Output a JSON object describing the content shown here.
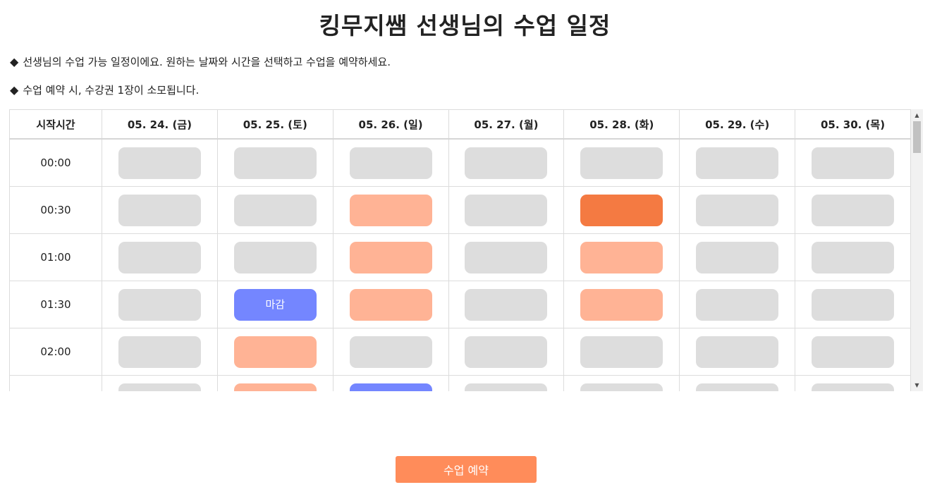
{
  "page": {
    "title": "킹무지쌤 선생님의 수업 일정",
    "notices": [
      "선생님의 수업 가능 일정이에요. 원하는 날짜와 시간을 선택하고 수업을 예약하세요.",
      "수업 예약 시, 수강권 1장이 소모됩니다."
    ],
    "bullet_glyph": "◆"
  },
  "schedule": {
    "time_header": "시작시간",
    "dates": [
      "05. 24. (금)",
      "05. 25. (토)",
      "05. 26. (일)",
      "05. 27. (월)",
      "05. 28. (화)",
      "05. 29. (수)",
      "05. 30. (목)"
    ],
    "rows": [
      {
        "time": "00:00",
        "slots": [
          {
            "state": "empty",
            "label": ""
          },
          {
            "state": "empty",
            "label": ""
          },
          {
            "state": "empty",
            "label": ""
          },
          {
            "state": "empty",
            "label": ""
          },
          {
            "state": "empty",
            "label": ""
          },
          {
            "state": "empty",
            "label": ""
          },
          {
            "state": "empty",
            "label": ""
          }
        ]
      },
      {
        "time": "00:30",
        "slots": [
          {
            "state": "empty",
            "label": ""
          },
          {
            "state": "empty",
            "label": ""
          },
          {
            "state": "available",
            "label": ""
          },
          {
            "state": "empty",
            "label": ""
          },
          {
            "state": "selected",
            "label": ""
          },
          {
            "state": "empty",
            "label": ""
          },
          {
            "state": "empty",
            "label": ""
          }
        ]
      },
      {
        "time": "01:00",
        "slots": [
          {
            "state": "empty",
            "label": ""
          },
          {
            "state": "empty",
            "label": ""
          },
          {
            "state": "available",
            "label": ""
          },
          {
            "state": "empty",
            "label": ""
          },
          {
            "state": "available",
            "label": ""
          },
          {
            "state": "empty",
            "label": ""
          },
          {
            "state": "empty",
            "label": ""
          }
        ]
      },
      {
        "time": "01:30",
        "slots": [
          {
            "state": "empty",
            "label": ""
          },
          {
            "state": "closed",
            "label": "마감"
          },
          {
            "state": "available",
            "label": ""
          },
          {
            "state": "empty",
            "label": ""
          },
          {
            "state": "available",
            "label": ""
          },
          {
            "state": "empty",
            "label": ""
          },
          {
            "state": "empty",
            "label": ""
          }
        ]
      },
      {
        "time": "02:00",
        "slots": [
          {
            "state": "empty",
            "label": ""
          },
          {
            "state": "available",
            "label": ""
          },
          {
            "state": "empty",
            "label": ""
          },
          {
            "state": "empty",
            "label": ""
          },
          {
            "state": "empty",
            "label": ""
          },
          {
            "state": "empty",
            "label": ""
          },
          {
            "state": "empty",
            "label": ""
          }
        ]
      },
      {
        "time": "",
        "slots": [
          {
            "state": "empty",
            "label": ""
          },
          {
            "state": "available",
            "label": ""
          },
          {
            "state": "closed",
            "label": ""
          },
          {
            "state": "empty",
            "label": ""
          },
          {
            "state": "empty",
            "label": ""
          },
          {
            "state": "empty",
            "label": ""
          },
          {
            "state": "empty",
            "label": ""
          }
        ]
      }
    ]
  },
  "colors": {
    "empty": "#dddddd",
    "available": "#ffb395",
    "selected": "#f47a42",
    "closed": "#7486ff",
    "reserve_button": "#ff8c5a"
  },
  "scrollbar": {
    "up_glyph": "▲",
    "down_glyph": "▼"
  },
  "reserve_button": {
    "label": "수업 예약"
  }
}
